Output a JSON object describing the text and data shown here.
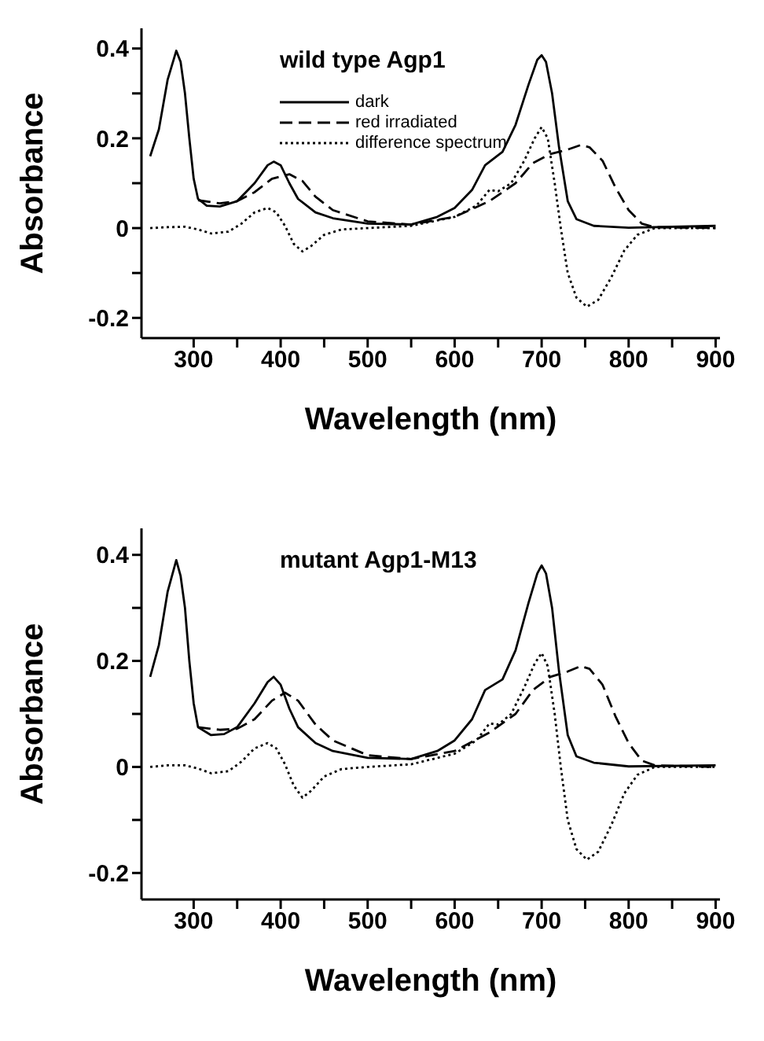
{
  "chart_data": [
    {
      "type": "line",
      "xlabel": "Wavelength (nm)",
      "ylabel": "Absorbance",
      "annotations": [
        "wild type Agp1"
      ],
      "xlim": [
        240,
        905
      ],
      "ylim": [
        -0.245,
        0.445
      ],
      "xticks": [
        300,
        {
          "value": 350,
          "label": null
        },
        400,
        {
          "value": 450,
          "label": null
        },
        500,
        {
          "value": 550,
          "label": null
        },
        600,
        {
          "value": 650,
          "label": null
        },
        700,
        {
          "value": 750,
          "label": null
        },
        800,
        {
          "value": 850,
          "label": null
        },
        900
      ],
      "yticks": [
        {
          "value": -0.2,
          "label": "-0.2"
        },
        {
          "value": -0.1,
          "label": null
        },
        0,
        {
          "value": 0.1,
          "label": null
        },
        {
          "value": 0.2,
          "label": "0.2"
        },
        {
          "value": 0.3,
          "label": null
        },
        {
          "value": 0.4,
          "label": "0.4"
        }
      ],
      "legend": "top",
      "series": [
        {
          "name": "dark",
          "color": "#000000",
          "line_style": "solid",
          "x": [
            250,
            260,
            270,
            280,
            285,
            290,
            295,
            300,
            305,
            315,
            330,
            350,
            370,
            385,
            392,
            400,
            410,
            420,
            440,
            460,
            500,
            550,
            580,
            600,
            620,
            635,
            645,
            655,
            670,
            685,
            695,
            700,
            705,
            712,
            720,
            730,
            740,
            760,
            800,
            900
          ],
          "values": [
            0.16,
            0.22,
            0.33,
            0.395,
            0.37,
            0.3,
            0.2,
            0.11,
            0.065,
            0.05,
            0.048,
            0.06,
            0.1,
            0.14,
            0.148,
            0.14,
            0.1,
            0.065,
            0.035,
            0.022,
            0.01,
            0.008,
            0.025,
            0.045,
            0.085,
            0.14,
            0.155,
            0.17,
            0.23,
            0.32,
            0.375,
            0.385,
            0.37,
            0.3,
            0.18,
            0.06,
            0.02,
            0.005,
            0.001,
            0.005
          ]
        },
        {
          "name": "red irradiated",
          "color": "#000000",
          "line_style": "dashed",
          "x": [
            305,
            330,
            350,
            370,
            390,
            410,
            425,
            440,
            460,
            500,
            550,
            600,
            640,
            670,
            690,
            710,
            730,
            745,
            755,
            770,
            785,
            800,
            815,
            830,
            900
          ],
          "values": [
            0.062,
            0.055,
            0.06,
            0.08,
            0.11,
            0.12,
            0.105,
            0.07,
            0.04,
            0.015,
            0.008,
            0.025,
            0.06,
            0.1,
            0.145,
            0.165,
            0.175,
            0.185,
            0.18,
            0.15,
            0.09,
            0.04,
            0.01,
            0.002,
            0.0
          ]
        },
        {
          "name": "difference spectrum",
          "color": "#000000",
          "line_style": "dotted",
          "x": [
            250,
            270,
            290,
            305,
            320,
            340,
            355,
            370,
            385,
            395,
            405,
            415,
            425,
            435,
            450,
            470,
            500,
            550,
            600,
            625,
            640,
            650,
            665,
            680,
            692,
            700,
            707,
            715,
            722,
            730,
            740,
            752,
            765,
            780,
            795,
            810,
            830,
            900
          ],
          "values": [
            0,
            0.002,
            0.003,
            -0.003,
            -0.012,
            -0.008,
            0.01,
            0.035,
            0.045,
            0.035,
            0.005,
            -0.035,
            -0.052,
            -0.04,
            -0.015,
            -0.003,
            0,
            0.005,
            0.025,
            0.05,
            0.085,
            0.082,
            0.1,
            0.15,
            0.2,
            0.225,
            0.2,
            0.1,
            0,
            -0.1,
            -0.155,
            -0.175,
            -0.16,
            -0.11,
            -0.05,
            -0.015,
            0,
            0
          ]
        }
      ]
    },
    {
      "type": "line",
      "xlabel": "Wavelength (nm)",
      "ylabel": "Absorbance",
      "annotations": [
        "mutant Agp1-M13"
      ],
      "xlim": [
        240,
        905
      ],
      "ylim": [
        -0.25,
        0.45
      ],
      "xticks": [
        300,
        {
          "value": 350,
          "label": null
        },
        400,
        {
          "value": 450,
          "label": null
        },
        500,
        {
          "value": 550,
          "label": null
        },
        600,
        {
          "value": 650,
          "label": null
        },
        700,
        {
          "value": 750,
          "label": null
        },
        800,
        {
          "value": 850,
          "label": null
        },
        900
      ],
      "yticks": [
        {
          "value": -0.2,
          "label": "-0.2"
        },
        {
          "value": -0.1,
          "label": null
        },
        0,
        {
          "value": 0.1,
          "label": null
        },
        {
          "value": 0.2,
          "label": "0.2"
        },
        {
          "value": 0.3,
          "label": null
        },
        {
          "value": 0.4,
          "label": "0.4"
        }
      ],
      "legend": false,
      "series": [
        {
          "color": "#000000",
          "line_style": "solid",
          "x": [
            250,
            260,
            270,
            280,
            285,
            290,
            295,
            300,
            305,
            320,
            335,
            350,
            370,
            385,
            392,
            400,
            410,
            420,
            440,
            460,
            500,
            550,
            580,
            600,
            620,
            635,
            645,
            655,
            670,
            685,
            695,
            700,
            705,
            712,
            720,
            730,
            740,
            760,
            800,
            900
          ],
          "values": [
            0.17,
            0.23,
            0.33,
            0.39,
            0.36,
            0.3,
            0.2,
            0.12,
            0.075,
            0.06,
            0.062,
            0.075,
            0.12,
            0.16,
            0.17,
            0.155,
            0.11,
            0.075,
            0.045,
            0.03,
            0.017,
            0.015,
            0.03,
            0.05,
            0.09,
            0.145,
            0.155,
            0.165,
            0.22,
            0.31,
            0.365,
            0.38,
            0.365,
            0.3,
            0.18,
            0.06,
            0.02,
            0.008,
            0.001,
            0.003
          ]
        },
        {
          "color": "#000000",
          "line_style": "dashed",
          "x": [
            305,
            330,
            350,
            370,
            390,
            405,
            420,
            440,
            460,
            500,
            550,
            600,
            640,
            670,
            690,
            710,
            730,
            745,
            755,
            770,
            785,
            800,
            815,
            830,
            900
          ],
          "values": [
            0.075,
            0.07,
            0.072,
            0.09,
            0.125,
            0.14,
            0.125,
            0.08,
            0.05,
            0.022,
            0.015,
            0.03,
            0.065,
            0.1,
            0.145,
            0.17,
            0.18,
            0.19,
            0.185,
            0.155,
            0.095,
            0.045,
            0.012,
            0.003,
            0.0
          ]
        },
        {
          "color": "#000000",
          "line_style": "dotted",
          "x": [
            250,
            270,
            290,
            305,
            320,
            340,
            355,
            370,
            385,
            395,
            405,
            415,
            425,
            435,
            450,
            470,
            500,
            550,
            600,
            625,
            640,
            650,
            665,
            680,
            692,
            700,
            707,
            715,
            722,
            730,
            740,
            752,
            765,
            780,
            795,
            810,
            830,
            900
          ],
          "values": [
            0,
            0.003,
            0.003,
            -0.003,
            -0.012,
            -0.008,
            0.01,
            0.035,
            0.045,
            0.035,
            0.005,
            -0.035,
            -0.058,
            -0.045,
            -0.018,
            -0.004,
            0,
            0.005,
            0.025,
            0.05,
            0.082,
            0.08,
            0.1,
            0.15,
            0.195,
            0.215,
            0.19,
            0.1,
            0,
            -0.1,
            -0.155,
            -0.175,
            -0.16,
            -0.11,
            -0.05,
            -0.015,
            0,
            0
          ]
        }
      ]
    }
  ]
}
